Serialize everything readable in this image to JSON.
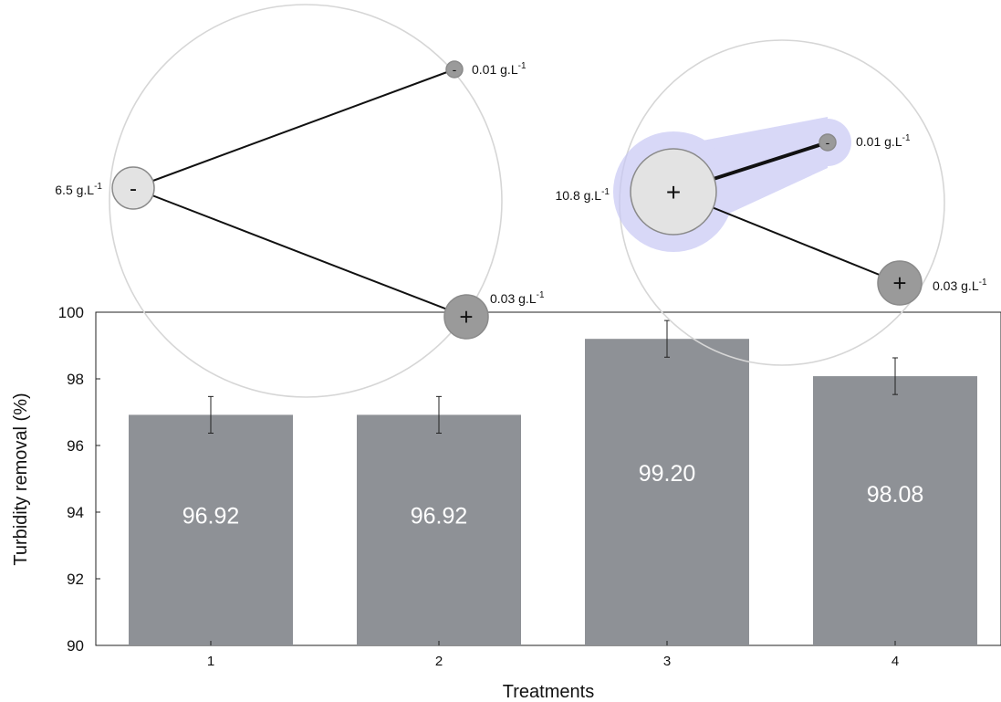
{
  "chart_data": {
    "type": "bar",
    "categories": [
      "1",
      "2",
      "3",
      "4"
    ],
    "values": [
      96.92,
      96.92,
      99.2,
      98.08
    ],
    "value_labels": [
      "96.92",
      "96.92",
      "99.20",
      "98.08"
    ],
    "error": [
      0.55,
      0.55,
      0.55,
      0.55
    ],
    "ylim": [
      90,
      100
    ],
    "yticks": [
      "90",
      "92",
      "94",
      "96",
      "98",
      "100"
    ],
    "xlabel": "Treatments",
    "ylabel": "Turbidity removal (%)",
    "bar_color": "#8e9196",
    "grid": false
  },
  "network_diagrams": [
    {
      "nodes": [
        {
          "sign": "-",
          "label": "6.5 g.L",
          "superscript": "-1"
        },
        {
          "sign": "-",
          "label": "0.01 g.L",
          "superscript": "-1"
        },
        {
          "sign": "+",
          "label": "0.03 g.L",
          "superscript": "-1"
        }
      ]
    },
    {
      "nodes": [
        {
          "sign": "+",
          "label": "10.8 g.L",
          "superscript": "-1"
        },
        {
          "sign": "-",
          "label": "0.01 g.L",
          "superscript": "-1"
        },
        {
          "sign": "+",
          "label": "0.03 g.L",
          "superscript": "-1"
        }
      ],
      "highlight_color": "#c8c8f5"
    }
  ]
}
